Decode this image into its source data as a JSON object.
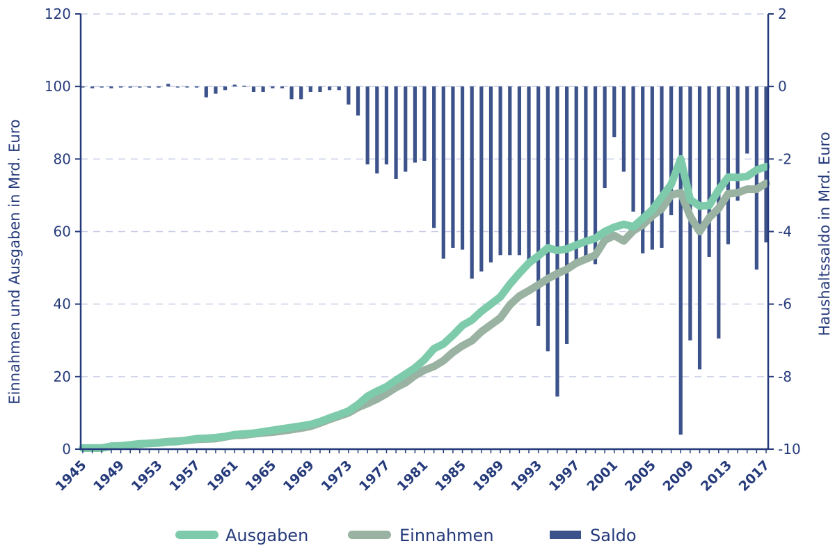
{
  "chart_data": {
    "type": "bar+line",
    "colors": {
      "axis": "#253a7a",
      "grid": "#c8cde6",
      "ausgaben": "#7ecbab",
      "einnahmen": "#99b2a1",
      "saldo": "#3c528a"
    },
    "y_left": {
      "label": "Einnahmen und Ausgaben in Mrd. Euro",
      "ylim": [
        0,
        120
      ],
      "ticks": [
        "0",
        "20",
        "40",
        "60",
        "80",
        "100",
        "120"
      ]
    },
    "y_right": {
      "label": "Haushaltssaldo in Mrd. Euro",
      "ylim": [
        -10,
        2
      ],
      "ticks": [
        "-10",
        "-8",
        "-6",
        "-4",
        "-2",
        "0",
        "2"
      ]
    },
    "x_ticks": [
      "1945",
      "1949",
      "1953",
      "1957",
      "1961",
      "1965",
      "1969",
      "1973",
      "1977",
      "1981",
      "1985",
      "1989",
      "1993",
      "1997",
      "2001",
      "2005",
      "2009",
      "2013",
      "2017"
    ],
    "years": [
      1945,
      1946,
      1947,
      1948,
      1949,
      1950,
      1951,
      1952,
      1953,
      1954,
      1955,
      1956,
      1957,
      1958,
      1959,
      1960,
      1961,
      1962,
      1963,
      1964,
      1965,
      1966,
      1967,
      1968,
      1969,
      1970,
      1971,
      1972,
      1973,
      1974,
      1975,
      1976,
      1977,
      1978,
      1979,
      1980,
      1981,
      1982,
      1983,
      1984,
      1985,
      1986,
      1987,
      1988,
      1989,
      1990,
      1991,
      1992,
      1993,
      1994,
      1995,
      1996,
      1997,
      1998,
      1999,
      2000,
      2001,
      2002,
      2003,
      2004,
      2005,
      2006,
      2007,
      2008,
      2009,
      2010,
      2011,
      2012,
      2013,
      2014,
      2015,
      2016,
      2017
    ],
    "series": [
      {
        "name": "Ausgaben",
        "type": "line",
        "values": [
          0.3,
          0.3,
          0.3,
          0.8,
          0.9,
          1.2,
          1.5,
          1.6,
          1.7,
          2.0,
          2.1,
          2.5,
          2.9,
          3.0,
          3.2,
          3.5,
          4.0,
          4.2,
          4.4,
          4.8,
          5.2,
          5.6,
          6.0,
          6.4,
          6.8,
          7.6,
          8.6,
          9.5,
          10.5,
          12.3,
          14.6,
          16.0,
          17.2,
          19.0,
          20.7,
          22.4,
          24.7,
          27.7,
          29.0,
          31.4,
          34.1,
          35.6,
          38.0,
          40.0,
          42.0,
          45.5,
          48.5,
          51.3,
          53.3,
          55.5,
          54.8,
          55.2,
          56.3,
          57.3,
          58.1,
          60.0,
          61.2,
          62.0,
          61.3,
          63.6,
          66.0,
          69.5,
          73.0,
          80.0,
          68.8,
          67.0,
          67.2,
          71.5,
          75.0,
          74.9,
          75.2,
          77.0,
          77.9
        ]
      },
      {
        "name": "Einnahmen",
        "type": "line",
        "values": [
          0.3,
          0.3,
          0.3,
          0.8,
          0.9,
          1.1,
          1.4,
          1.6,
          1.8,
          2.1,
          2.2,
          2.4,
          2.7,
          2.8,
          2.9,
          3.4,
          3.8,
          3.9,
          4.2,
          4.5,
          4.7,
          5.0,
          5.4,
          5.8,
          6.3,
          7.2,
          8.2,
          9.1,
          10.0,
          11.5,
          12.6,
          13.8,
          15.3,
          17.0,
          18.3,
          20.3,
          21.8,
          22.8,
          24.4,
          26.7,
          28.5,
          29.9,
          32.4,
          34.3,
          36.2,
          39.8,
          42.2,
          43.7,
          45.3,
          47.0,
          48.4,
          49.6,
          51.3,
          52.4,
          53.5,
          57.6,
          58.9,
          57.4,
          60.2,
          61.8,
          64.3,
          66.3,
          70.1,
          70.7,
          64.2,
          60.0,
          63.8,
          66.4,
          70.4,
          70.7,
          71.7,
          71.7,
          73.3
        ]
      },
      {
        "name": "Saldo",
        "type": "bar",
        "values": [
          0.0,
          -0.05,
          0.0,
          -0.05,
          0.0,
          -0.03,
          -0.03,
          -0.03,
          -0.03,
          0.07,
          -0.02,
          -0.02,
          -0.03,
          -0.3,
          -0.2,
          -0.1,
          0.05,
          0.02,
          -0.15,
          -0.15,
          -0.05,
          -0.05,
          -0.35,
          -0.35,
          -0.15,
          -0.15,
          -0.1,
          -0.1,
          -0.5,
          -0.8,
          -2.15,
          -2.4,
          -2.15,
          -2.55,
          -2.35,
          -2.1,
          -2.05,
          -3.9,
          -4.75,
          -4.45,
          -4.5,
          -5.3,
          -5.1,
          -4.85,
          -4.65,
          -4.65,
          -4.65,
          -4.8,
          -6.6,
          -7.3,
          -8.55,
          -7.1,
          -4.8,
          -4.75,
          -4.9,
          -2.8,
          -1.4,
          -2.35,
          -3.45,
          -4.6,
          -4.5,
          -4.45,
          -3.55,
          -9.6,
          -7.0,
          -7.8,
          -4.7,
          -6.95,
          -4.35,
          -3.15,
          -1.85,
          -5.05,
          -4.3
        ]
      }
    ]
  },
  "axes": {
    "left_title": "Einnahmen und Ausgaben in Mrd. Euro",
    "right_title": "Haushaltssaldo in Mrd. Euro"
  },
  "legend": {
    "ausgaben": "Ausgaben",
    "einnahmen": "Einnahmen",
    "saldo": "Saldo"
  }
}
